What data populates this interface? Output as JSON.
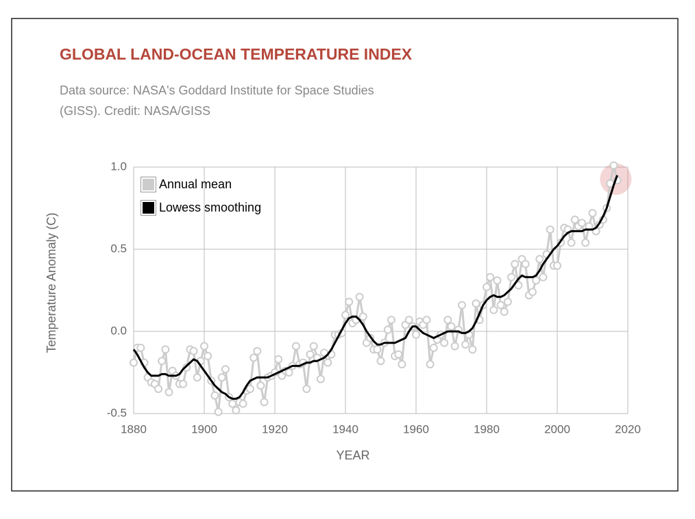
{
  "chart_data": {
    "type": "line",
    "title": "GLOBAL LAND-OCEAN TEMPERATURE INDEX",
    "subtitle": [
      "Data source: NASA's Goddard Institute for Space Studies",
      "(GISS). Credit: NASA/GISS"
    ],
    "x_label": "YEAR",
    "y_label": "Temperature Anomaly (C)",
    "x": [
      1880,
      1881,
      1882,
      1883,
      1884,
      1885,
      1886,
      1887,
      1888,
      1889,
      1890,
      1891,
      1892,
      1893,
      1894,
      1895,
      1896,
      1897,
      1898,
      1899,
      1900,
      1901,
      1902,
      1903,
      1904,
      1905,
      1906,
      1907,
      1908,
      1909,
      1910,
      1911,
      1912,
      1913,
      1914,
      1915,
      1916,
      1917,
      1918,
      1919,
      1920,
      1921,
      1922,
      1923,
      1924,
      1925,
      1926,
      1927,
      1928,
      1929,
      1930,
      1931,
      1932,
      1933,
      1934,
      1935,
      1936,
      1937,
      1938,
      1939,
      1940,
      1941,
      1942,
      1943,
      1944,
      1945,
      1946,
      1947,
      1948,
      1949,
      1950,
      1951,
      1952,
      1953,
      1954,
      1955,
      1956,
      1957,
      1958,
      1959,
      1960,
      1961,
      1962,
      1963,
      1964,
      1965,
      1966,
      1967,
      1968,
      1969,
      1970,
      1971,
      1972,
      1973,
      1974,
      1975,
      1976,
      1977,
      1978,
      1979,
      1980,
      1981,
      1982,
      1983,
      1984,
      1985,
      1986,
      1987,
      1988,
      1989,
      1990,
      1991,
      1992,
      1993,
      1994,
      1995,
      1996,
      1997,
      1998,
      1999,
      2000,
      2001,
      2002,
      2003,
      2004,
      2005,
      2006,
      2007,
      2008,
      2009,
      2010,
      2011,
      2012,
      2013,
      2014,
      2015,
      2016,
      2017
    ],
    "series": [
      {
        "name": "Annual mean",
        "color": "#cccccc",
        "values": [
          -0.19,
          -0.1,
          -0.1,
          -0.19,
          -0.28,
          -0.31,
          -0.32,
          -0.35,
          -0.18,
          -0.11,
          -0.37,
          -0.24,
          -0.27,
          -0.32,
          -0.32,
          -0.22,
          -0.11,
          -0.12,
          -0.28,
          -0.18,
          -0.09,
          -0.15,
          -0.3,
          -0.39,
          -0.49,
          -0.28,
          -0.23,
          -0.4,
          -0.44,
          -0.48,
          -0.43,
          -0.44,
          -0.36,
          -0.35,
          -0.16,
          -0.12,
          -0.33,
          -0.43,
          -0.28,
          -0.27,
          -0.25,
          -0.17,
          -0.27,
          -0.24,
          -0.25,
          -0.21,
          -0.09,
          -0.2,
          -0.19,
          -0.35,
          -0.14,
          -0.09,
          -0.16,
          -0.29,
          -0.13,
          -0.19,
          -0.14,
          -0.02,
          -0.02,
          -0.01,
          0.1,
          0.18,
          0.05,
          0.07,
          0.21,
          0.09,
          -0.07,
          -0.04,
          -0.11,
          -0.11,
          -0.18,
          -0.07,
          0.01,
          0.07,
          -0.15,
          -0.14,
          -0.2,
          0.04,
          0.07,
          0.03,
          -0.02,
          0.06,
          0.04,
          0.07,
          -0.2,
          -0.1,
          -0.05,
          -0.02,
          -0.07,
          0.07,
          0.03,
          -0.09,
          0.01,
          0.16,
          -0.08,
          -0.02,
          -0.11,
          0.17,
          0.07,
          0.16,
          0.27,
          0.33,
          0.13,
          0.31,
          0.16,
          0.12,
          0.18,
          0.33,
          0.41,
          0.28,
          0.44,
          0.41,
          0.22,
          0.24,
          0.31,
          0.44,
          0.33,
          0.47,
          0.62,
          0.4,
          0.4,
          0.54,
          0.63,
          0.62,
          0.54,
          0.68,
          0.64,
          0.66,
          0.54,
          0.64,
          0.72,
          0.61,
          0.65,
          0.68,
          0.75,
          0.9,
          1.01,
          0.92
        ]
      },
      {
        "name": "Lowess smoothing",
        "color": "#000000",
        "values": [
          -0.11,
          -0.14,
          -0.18,
          -0.22,
          -0.25,
          -0.27,
          -0.27,
          -0.27,
          -0.26,
          -0.26,
          -0.27,
          -0.27,
          -0.27,
          -0.26,
          -0.23,
          -0.21,
          -0.19,
          -0.17,
          -0.18,
          -0.21,
          -0.24,
          -0.27,
          -0.3,
          -0.33,
          -0.35,
          -0.37,
          -0.38,
          -0.4,
          -0.41,
          -0.41,
          -0.4,
          -0.37,
          -0.33,
          -0.3,
          -0.29,
          -0.28,
          -0.28,
          -0.28,
          -0.28,
          -0.27,
          -0.26,
          -0.25,
          -0.24,
          -0.23,
          -0.22,
          -0.21,
          -0.21,
          -0.21,
          -0.2,
          -0.19,
          -0.19,
          -0.18,
          -0.18,
          -0.17,
          -0.16,
          -0.14,
          -0.11,
          -0.07,
          -0.03,
          0.01,
          0.05,
          0.08,
          0.09,
          0.09,
          0.07,
          0.04,
          0.0,
          -0.03,
          -0.06,
          -0.08,
          -0.08,
          -0.07,
          -0.07,
          -0.07,
          -0.07,
          -0.06,
          -0.05,
          -0.04,
          0.0,
          0.03,
          0.03,
          0.01,
          -0.01,
          -0.02,
          -0.03,
          -0.04,
          -0.03,
          -0.02,
          -0.01,
          0.0,
          0.0,
          0.0,
          0.0,
          -0.01,
          -0.01,
          0.0,
          0.02,
          0.06,
          0.11,
          0.16,
          0.19,
          0.21,
          0.22,
          0.21,
          0.21,
          0.22,
          0.24,
          0.26,
          0.29,
          0.32,
          0.34,
          0.33,
          0.33,
          0.33,
          0.34,
          0.37,
          0.41,
          0.44,
          0.47,
          0.5,
          0.52,
          0.55,
          0.58,
          0.6,
          0.61,
          0.61,
          0.61,
          0.61,
          0.62,
          0.62,
          0.62,
          0.63,
          0.66,
          0.7,
          0.75,
          0.82,
          0.89,
          0.95
        ]
      }
    ],
    "xlim": [
      1880,
      2020
    ],
    "xticks": [
      1880,
      1900,
      1920,
      1940,
      1960,
      1980,
      2000,
      2020
    ],
    "ylim": [
      -0.5,
      1.0
    ],
    "yticks": [
      {
        "value": 1.0,
        "label": "1.0"
      },
      0.5,
      {
        "value": 0.0,
        "label": "0.0"
      },
      -0.5
    ],
    "grid": true,
    "legend": "upper left"
  }
}
